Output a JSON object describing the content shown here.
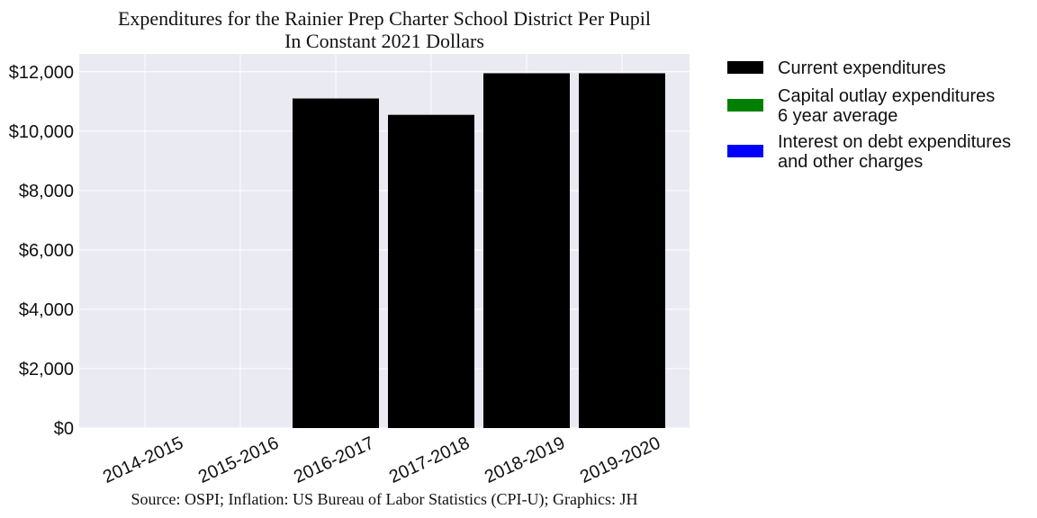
{
  "chart_data": {
    "type": "bar",
    "title": "Expenditures for the Rainier Prep Charter School District Per Pupil",
    "subtitle": "In Constant 2021 Dollars",
    "source": "Source: OSPI; Inflation: US Bureau of Labor Statistics (CPI-U); Graphics: JH",
    "xlabel": "",
    "ylabel": "",
    "categories": [
      "2014-2015",
      "2015-2016",
      "2016-2017",
      "2017-2018",
      "2018-2019",
      "2019-2020"
    ],
    "ylim": [
      0,
      12600
    ],
    "yticks": [
      0,
      2000,
      4000,
      6000,
      8000,
      10000,
      12000
    ],
    "ytick_labels": [
      "$0",
      "$2,000",
      "$4,000",
      "$6,000",
      "$8,000",
      "$10,000",
      "$12,000"
    ],
    "grid": true,
    "legend_position": "right",
    "series": [
      {
        "name": "Current expenditures",
        "color": "#000000",
        "values": [
          0,
          0,
          11100,
          10550,
          11950,
          11950
        ]
      },
      {
        "name": "Capital outlay expenditures\n6 year average",
        "color": "#008000",
        "values": [
          0,
          0,
          0,
          0,
          0,
          0
        ]
      },
      {
        "name": "Interest on debt expenditures\nand other charges",
        "color": "#0000ff",
        "values": [
          0,
          0,
          0,
          0,
          0,
          0
        ]
      }
    ]
  }
}
